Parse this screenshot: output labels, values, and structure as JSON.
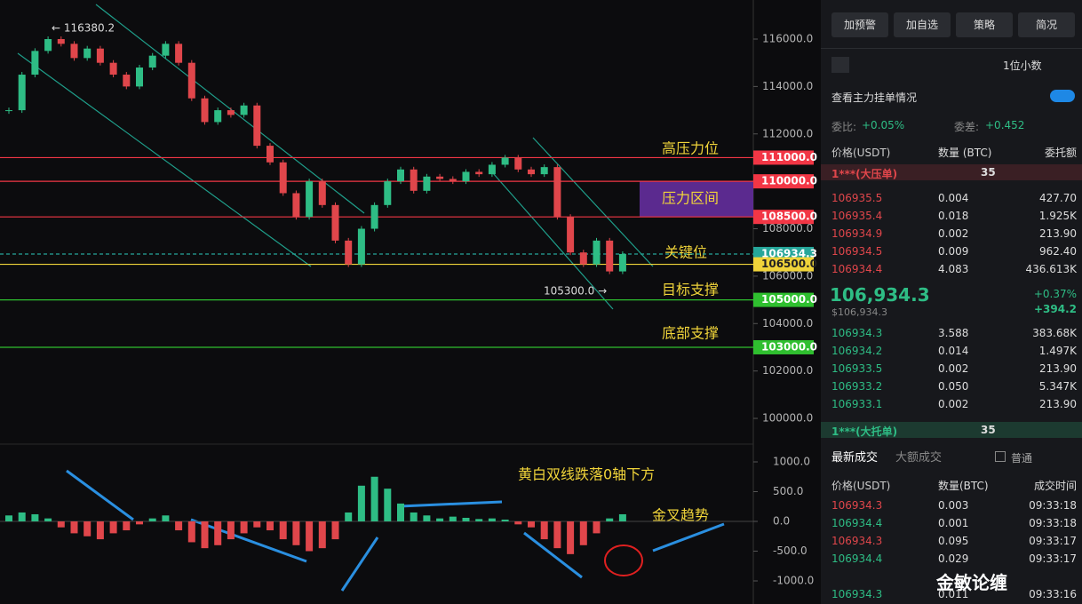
{
  "chart": {
    "price_ticks": [
      {
        "value": 116000,
        "label": "116000.0"
      },
      {
        "value": 114000,
        "label": "114000.0"
      },
      {
        "value": 112000,
        "label": "112000.0"
      },
      {
        "value": 108000,
        "label": "108000.0"
      },
      {
        "value": 106000,
        "label": "106000.0"
      },
      {
        "value": 104000,
        "label": "104000.0"
      },
      {
        "value": 102000,
        "label": "102000.0"
      },
      {
        "value": 100000,
        "label": "100000.0"
      }
    ],
    "levels": [
      {
        "value": 111000,
        "label": "111000.0",
        "color": "#f23645"
      },
      {
        "value": 110000,
        "label": "110000.0",
        "color": "#f23645"
      },
      {
        "value": 108500,
        "label": "108500.0",
        "color": "#f23645"
      },
      {
        "value": 106934.3,
        "label": "106934.3",
        "color": "#26a69a"
      },
      {
        "value": 106500,
        "label": "106500.0",
        "color": "#f0d43a"
      },
      {
        "value": 105000,
        "label": "105000.0",
        "color": "#2fbf2f"
      },
      {
        "value": 103000,
        "label": "103000.0",
        "color": "#2fbf2f"
      }
    ],
    "annotations": {
      "high_resistance": "高压力位",
      "resistance_zone": "压力区间",
      "key_level": "关键位",
      "target_support": "目标支撑",
      "bottom_support": "底部支撑",
      "macd_note": "黄白双线跌落0轴下方",
      "golden_cross": "金叉趋势",
      "high": "← 116380.2",
      "low": "105300.0 →"
    },
    "closes": [
      113000,
      114500,
      115500,
      116000,
      115800,
      115200,
      115600,
      115000,
      114500,
      114000,
      114800,
      115300,
      115800,
      115000,
      113500,
      112500,
      113000,
      112800,
      113200,
      111500,
      110800,
      109500,
      108500,
      110000,
      109000,
      107500,
      106500,
      108000,
      109000,
      110000,
      110500,
      109600,
      110200,
      110100,
      110000,
      110400,
      110300,
      110700,
      111000,
      110500,
      110300,
      110600,
      108500,
      107000,
      106500,
      107500,
      106200,
      106934.3
    ],
    "macd_ticks": [
      {
        "value": 1000,
        "label": "1000.0"
      },
      {
        "value": 500,
        "label": "500.0"
      },
      {
        "value": 0,
        "label": "0.0"
      },
      {
        "value": -500,
        "label": "-500.0"
      },
      {
        "value": -1000,
        "label": "-1000.0"
      }
    ],
    "macd_hist": [
      100,
      150,
      120,
      50,
      -100,
      -200,
      -250,
      -300,
      -200,
      -150,
      -50,
      50,
      100,
      -150,
      -350,
      -450,
      -400,
      -300,
      -200,
      -100,
      -150,
      -300,
      -400,
      -500,
      -450,
      -300,
      150,
      600,
      750,
      550,
      300,
      150,
      100,
      50,
      80,
      60,
      40,
      50,
      30,
      -50,
      -100,
      -300,
      -450,
      -550,
      -400,
      -200,
      50,
      120
    ]
  },
  "panel": {
    "buttons": [
      "加预警",
      "加自选",
      "策略",
      "简况"
    ],
    "decimals": "1位小数",
    "main_orders": "查看主力挂单情况",
    "ratio_label": "委比:",
    "ratio": "+0.05%",
    "diff_label": "委差:",
    "diff": "+0.452",
    "book_headers": [
      "价格(USDT)",
      "数量 (BTC)",
      "委托额"
    ],
    "big_ask": "1***(大压单)",
    "big_ask_qty": "35",
    "asks": [
      [
        "106935.5",
        "0.004",
        "427.70"
      ],
      [
        "106935.4",
        "0.018",
        "1.925K"
      ],
      [
        "106934.9",
        "0.002",
        "213.90"
      ],
      [
        "106934.5",
        "0.009",
        "962.40"
      ],
      [
        "106934.4",
        "4.083",
        "436.613K"
      ]
    ],
    "last": "106,934.3",
    "last_usd": "$106,934.3",
    "change_pct": "+0.37%",
    "change": "+394.2",
    "bids": [
      [
        "106934.3",
        "3.588",
        "383.68K"
      ],
      [
        "106934.2",
        "0.014",
        "1.497K"
      ],
      [
        "106933.5",
        "0.002",
        "213.90"
      ],
      [
        "106933.2",
        "0.050",
        "5.347K"
      ],
      [
        "106933.1",
        "0.002",
        "213.90"
      ]
    ],
    "big_bid": "1***(大托单)",
    "big_bid_qty": "35",
    "tabs": [
      "最新成交",
      "大额成交"
    ],
    "normal": "普通",
    "trade_headers": [
      "价格(USDT)",
      "数量(BTC)",
      "成交时间"
    ],
    "trades": [
      {
        "row": [
          "106934.3",
          "0.003",
          "09:33:18"
        ],
        "color": "#e0464b"
      },
      {
        "row": [
          "106934.4",
          "0.001",
          "09:33:18"
        ],
        "color": "#2ebd85"
      },
      {
        "row": [
          "106934.3",
          "0.095",
          "09:33:17"
        ],
        "color": "#e0464b"
      },
      {
        "row": [
          "106934.4",
          "0.029",
          "09:33:17"
        ],
        "color": "#2ebd85"
      },
      {
        "row": [
          "106934.3",
          "0.011",
          "09:33:16"
        ],
        "color": "#2ebd85"
      }
    ],
    "watermark": "金敏论缠"
  }
}
